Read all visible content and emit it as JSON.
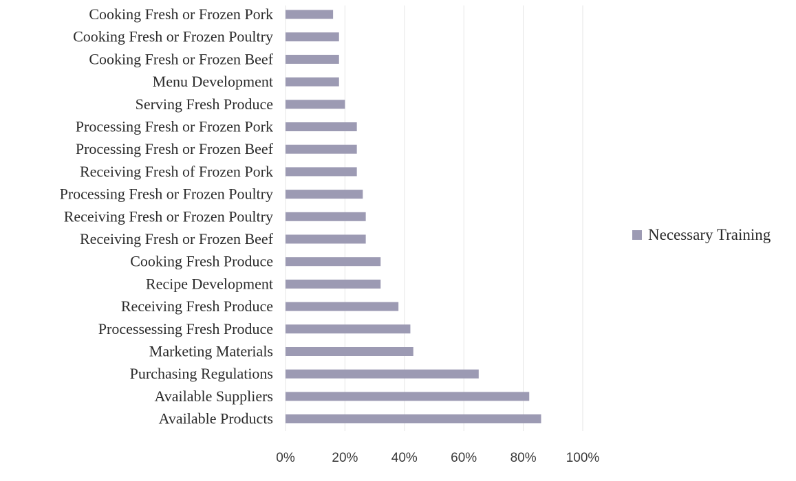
{
  "chart_data": {
    "type": "bar",
    "orientation": "horizontal",
    "categories": [
      "Cooking Fresh or Frozen Pork",
      "Cooking Fresh or Frozen Poultry",
      "Cooking Fresh or Frozen Beef",
      "Menu Development",
      "Serving Fresh Produce",
      "Processing Fresh or Frozen Pork",
      "Processing Fresh or Frozen Beef",
      "Receiving Fresh of Frozen Pork",
      "Processing Fresh or Frozen Poultry",
      "Receiving Fresh or Frozen Poultry",
      "Receiving Fresh or Frozen Beef",
      "Cooking Fresh Produce",
      "Recipe Development",
      "Receiving Fresh Produce",
      "Processessing Fresh Produce",
      "Marketing Materials",
      "Purchasing Regulations",
      "Available Suppliers",
      "Available Products"
    ],
    "series": [
      {
        "name": "Necessary Training",
        "color": "#9c9ab3",
        "values": [
          16,
          18,
          18,
          18,
          20,
          24,
          24,
          24,
          26,
          27,
          27,
          32,
          32,
          38,
          42,
          43,
          65,
          82,
          86
        ]
      }
    ],
    "xlim": [
      0,
      100
    ],
    "xticks": [
      "0%",
      "20%",
      "40%",
      "60%",
      "80%",
      "100%"
    ],
    "xtick_values": [
      0,
      20,
      40,
      60,
      80,
      100
    ],
    "grid": true,
    "legend_position": "right"
  }
}
